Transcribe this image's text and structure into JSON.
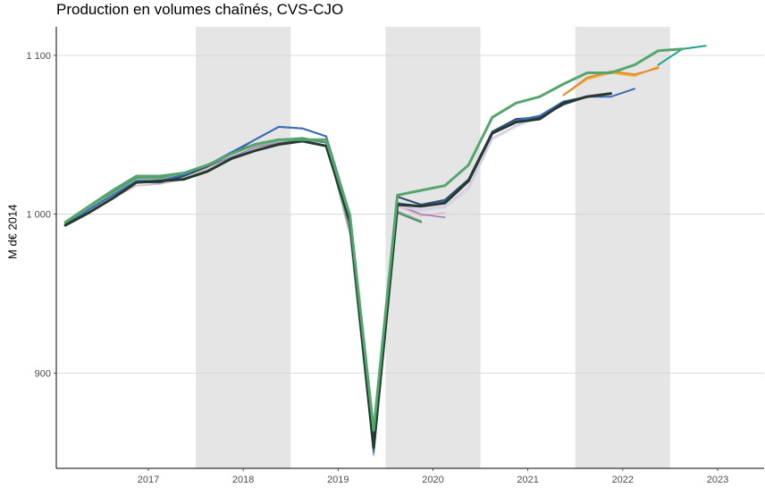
{
  "chart_data": {
    "type": "line",
    "title": "Production en volumes chaînés, CVS-CJO",
    "xlabel": "",
    "ylabel": "M d€ 2014",
    "x_ticks": [
      "2017",
      "2018",
      "2019",
      "2020",
      "2021",
      "2022",
      "2023"
    ],
    "y_ticks": [
      900,
      1000,
      1100
    ],
    "y_tick_labels": [
      "900",
      "1 000",
      "1 100"
    ],
    "ylim": [
      840,
      1118
    ],
    "xlim": [
      2016.53,
      2023.99
    ],
    "shaded_years": [
      2018,
      2020,
      2022
    ],
    "grid": true,
    "legend": "none",
    "x": [
      2016.625,
      2016.875,
      2017.125,
      2017.375,
      2017.625,
      2017.875,
      2018.125,
      2018.375,
      2018.625,
      2018.875,
      2019.125,
      2019.375,
      2019.625,
      2019.875,
      2020.125,
      2020.375,
      2020.625,
      2020.875,
      2021.125,
      2021.375,
      2021.625,
      2021.875,
      2022.125,
      2022.375,
      2022.625,
      2022.875,
      2023.125,
      2023.375
    ],
    "series": [
      {
        "color": "#d9c9b6",
        "width": 1.5,
        "values": [
          993,
          1003,
          1011,
          1018,
          1019,
          1023,
          1029,
          1036,
          1042,
          1046,
          1048,
          1046,
          null,
          null,
          null,
          null,
          null,
          null,
          null,
          null,
          null,
          null,
          null,
          null,
          null,
          null,
          null,
          null
        ]
      },
      {
        "color": "#e1b7c3",
        "width": 1.5,
        "values": [
          993,
          1002,
          1010,
          1018,
          1019,
          1022,
          1028,
          1035,
          1040,
          1044,
          1047,
          1045,
          988,
          853,
          1005,
          999,
          1001,
          null,
          null,
          null,
          null,
          null,
          null,
          null,
          null,
          null,
          null,
          null
        ]
      },
      {
        "color": "#9d7ab0",
        "width": 1.5,
        "values": [
          994,
          1004,
          1012,
          1021,
          1021,
          1024,
          1030,
          1036,
          1042,
          1045,
          1047,
          1045,
          990,
          856,
          1006,
          1000,
          998,
          null,
          null,
          null,
          null,
          null,
          null,
          null,
          null,
          null,
          null,
          null
        ]
      },
      {
        "color": "#c9dcea",
        "width": 1.5,
        "values": [
          null,
          null,
          null,
          null,
          null,
          null,
          null,
          null,
          null,
          null,
          null,
          null,
          null,
          null,
          1005,
          1002,
          1004,
          1015,
          1047,
          1055,
          1061,
          1070,
          1074,
          1075,
          null,
          null,
          null,
          null
        ]
      },
      {
        "color": "#e0c2df",
        "width": 1.5,
        "values": [
          null,
          null,
          null,
          null,
          null,
          null,
          null,
          null,
          null,
          null,
          null,
          null,
          null,
          null,
          1005,
          1003,
          1005,
          1017,
          1048,
          1056,
          1062,
          1070,
          1075,
          1076,
          null,
          null,
          null,
          null
        ]
      },
      {
        "color": "#8fb7a0",
        "width": 1.5,
        "values": [
          994,
          1004,
          1013,
          1022,
          1022,
          1025,
          1031,
          1038,
          1043,
          1046,
          1048,
          1045,
          987,
          848,
          1002,
          996,
          null,
          null,
          null,
          null,
          null,
          null,
          null,
          null,
          null,
          null,
          null,
          null
        ]
      },
      {
        "color": "#4c8c6e",
        "width": 2,
        "values": [
          994,
          1005,
          1014,
          1023,
          1023,
          1026,
          1031,
          1039,
          1044,
          1047,
          1048,
          1045,
          996,
          850,
          1001,
          995,
          null,
          null,
          null,
          null,
          null,
          null,
          null,
          null,
          null,
          null,
          null,
          null
        ]
      },
      {
        "color": "#2f4a73",
        "width": 2,
        "values": [
          993,
          1003,
          1012,
          1020,
          1020,
          1024,
          1030,
          1038,
          1047,
          1055,
          1054,
          1049,
          1000,
          862,
          1011,
          1006,
          1009,
          1022,
          1052,
          1060,
          1061,
          1069,
          1074,
          1076,
          null,
          null,
          null,
          null
        ]
      },
      {
        "color": "#3a6fb8",
        "width": 2,
        "values": [
          993,
          1003,
          1012,
          1021,
          1021,
          1025,
          1031,
          1039,
          1047,
          1055,
          1054,
          1049,
          998,
          851,
          1007,
          1005,
          1008,
          1021,
          1051,
          1059,
          1062,
          1071,
          1074,
          1074,
          1079,
          null,
          null,
          null
        ]
      },
      {
        "color": "#f5b335",
        "width": 2,
        "values": [
          null,
          null,
          null,
          null,
          null,
          null,
          null,
          null,
          null,
          null,
          null,
          null,
          null,
          null,
          null,
          null,
          null,
          null,
          null,
          null,
          null,
          1075,
          1085,
          1089,
          1087,
          1093,
          null,
          null
        ]
      },
      {
        "color": "#e08a3a",
        "width": 2,
        "values": [
          null,
          null,
          null,
          null,
          null,
          null,
          null,
          null,
          null,
          null,
          null,
          null,
          null,
          null,
          null,
          null,
          null,
          null,
          null,
          null,
          null,
          1075,
          1086,
          1090,
          1088,
          1092,
          null,
          null
        ]
      },
      {
        "color": "#243a2f",
        "width": 3,
        "values": [
          993,
          1001,
          1010,
          1020,
          1021,
          1022,
          1027,
          1035,
          1040,
          1044,
          1046,
          1043,
          995,
          853,
          1006,
          1005,
          1007,
          1021,
          1051,
          1058,
          1060,
          1070,
          1074,
          1076,
          null,
          null,
          null,
          null
        ]
      },
      {
        "color": "#1fa38d",
        "width": 2,
        "values": [
          null,
          null,
          null,
          null,
          null,
          null,
          null,
          null,
          null,
          null,
          null,
          null,
          null,
          null,
          null,
          null,
          null,
          null,
          null,
          null,
          null,
          null,
          null,
          null,
          null,
          1094,
          1104,
          1106
        ]
      },
      {
        "color": "#55a66d",
        "width": 3,
        "values": [
          995,
          1005,
          1015,
          1024,
          1024,
          1026,
          1031,
          1038,
          1044,
          1047,
          1047,
          1047,
          999,
          864,
          1012,
          1015,
          1018,
          1031,
          1061,
          1070,
          1074,
          1082,
          1089,
          1089,
          1094,
          1103,
          1104,
          null
        ]
      }
    ]
  }
}
